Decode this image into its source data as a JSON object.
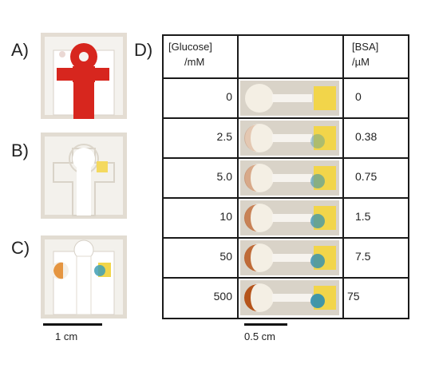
{
  "panels": {
    "a": "A)",
    "b": "B)",
    "c": "C)",
    "d": "D)"
  },
  "table": {
    "header_glucose": [
      "[Glucose]",
      "/mM"
    ],
    "header_bsa": [
      "[BSA]",
      "/µM"
    ],
    "rows": [
      {
        "glucose": "0",
        "bsa": "0"
      },
      {
        "glucose": "2.5",
        "bsa": "0.38"
      },
      {
        "glucose": "5.0",
        "bsa": "0.75"
      },
      {
        "glucose": "10",
        "bsa": "1.5"
      },
      {
        "glucose": "50",
        "bsa": "7.5"
      },
      {
        "glucose": "500",
        "bsa": "75"
      }
    ]
  },
  "scale": {
    "left": "1 cm",
    "right": "0.5 cm"
  },
  "colors": {
    "red_dye": "#d7261e",
    "paper": "#f3f2ee",
    "yellow_reagent": "#f2d54a",
    "blue_product": "#2f8fb0",
    "brown_product": "#b5541a"
  }
}
